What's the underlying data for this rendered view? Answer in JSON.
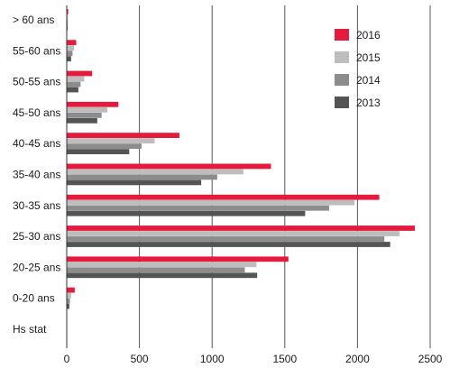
{
  "chart_data": {
    "type": "bar",
    "orientation": "horizontal",
    "categories": [
      "> 60 ans",
      "55-60 ans",
      "50-55 ans",
      "45-50 ans",
      "40-45 ans",
      "35-40 ans",
      "30-35 ans",
      "25-30 ans",
      "20-25 ans",
      "0-20 ans",
      "Hs stat"
    ],
    "series": [
      {
        "name": "2016",
        "color": "#e41b3c",
        "values": [
          10,
          65,
          175,
          355,
          775,
          1405,
          2150,
          2395,
          1525,
          55,
          3
        ]
      },
      {
        "name": "2015",
        "color": "#bdbdbe",
        "values": [
          8,
          50,
          120,
          280,
          605,
          1215,
          1980,
          2290,
          1305,
          30,
          2
        ]
      },
      {
        "name": "2014",
        "color": "#8c8c8d",
        "values": [
          7,
          40,
          95,
          240,
          515,
          1035,
          1805,
          2185,
          1225,
          22,
          2
        ]
      },
      {
        "name": "2013",
        "color": "#545455",
        "values": [
          6,
          30,
          80,
          210,
          430,
          925,
          1640,
          2225,
          1310,
          18,
          1
        ]
      }
    ],
    "xlim": [
      0,
      2500
    ],
    "xticks": [
      0,
      500,
      1000,
      1500,
      2000,
      2500
    ],
    "grid": "vertical",
    "legend": "top-right",
    "title": "",
    "xlabel": "",
    "ylabel": ""
  }
}
